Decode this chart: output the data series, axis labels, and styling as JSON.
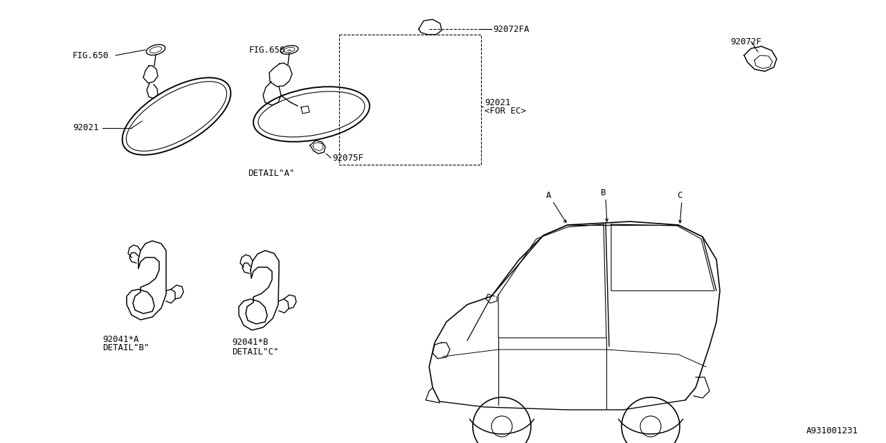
{
  "bg_color": "#ffffff",
  "line_color": "#000000",
  "diagram_id": "A931001231",
  "fs": 9,
  "parts": {
    "fig650": "FIG.650",
    "p92021": "92021",
    "p92021_ec": "92021",
    "p92021_ec2": "<FOR EC>",
    "p92072FA": "92072FA",
    "p92072F": "92072F",
    "p92075F": "92075F",
    "p92041A": "92041*A",
    "p92041B": "92041*B",
    "detail_A": "DETAIL\"A\"",
    "detail_B": "DETAIL\"B\"",
    "detail_C": "DETAIL\"C\"",
    "lA": "A",
    "lB": "B",
    "lC": "C"
  }
}
